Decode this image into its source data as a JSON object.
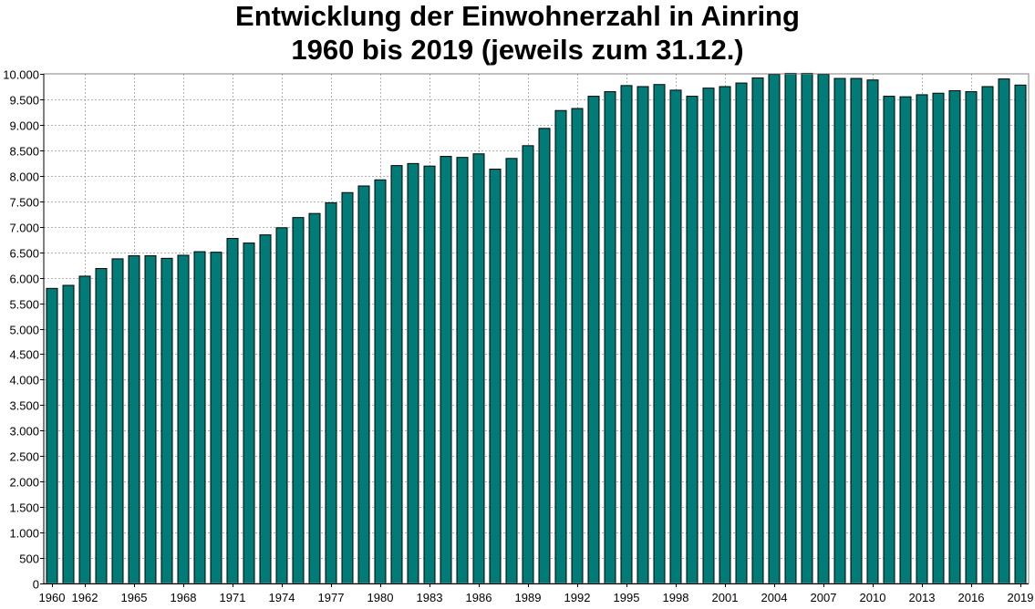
{
  "chart_data": {
    "type": "bar",
    "title": "Entwicklung der Einwohnerzahl in Ainring",
    "subtitle": "1960 bis 2019 (jeweils zum 31.12.)",
    "xlabel": "",
    "ylabel": "",
    "ylim": [
      0,
      10000
    ],
    "yticks": [
      0,
      500,
      1000,
      1500,
      2000,
      2500,
      3000,
      3500,
      4000,
      4500,
      5000,
      5500,
      6000,
      6500,
      7000,
      7500,
      8000,
      8500,
      9000,
      9500,
      10000
    ],
    "ytick_labels": [
      "0",
      "500",
      "1.000",
      "1.500",
      "2.000",
      "2.500",
      "3.000",
      "3.500",
      "4.000",
      "4.500",
      "5.000",
      "5.500",
      "6.000",
      "6.500",
      "7.000",
      "7.500",
      "8.000",
      "8.500",
      "9.000",
      "9.500",
      "10.000"
    ],
    "xtick_labels": [
      "1960",
      "1962",
      "1965",
      "1968",
      "1971",
      "1974",
      "1977",
      "1980",
      "1983",
      "1986",
      "1989",
      "1992",
      "1995",
      "1998",
      "2001",
      "2004",
      "2007",
      "2010",
      "2013",
      "2016",
      "2019"
    ],
    "grid": true,
    "bar_color": "#007b78",
    "categories": [
      "1960",
      "1961",
      "1962",
      "1963",
      "1964",
      "1965",
      "1966",
      "1967",
      "1968",
      "1969",
      "1970",
      "1971",
      "1972",
      "1973",
      "1974",
      "1975",
      "1976",
      "1977",
      "1978",
      "1979",
      "1980",
      "1981",
      "1982",
      "1983",
      "1984",
      "1985",
      "1986",
      "1987",
      "1988",
      "1989",
      "1990",
      "1991",
      "1992",
      "1993",
      "1994",
      "1995",
      "1996",
      "1997",
      "1998",
      "1999",
      "2000",
      "2001",
      "2002",
      "2003",
      "2004",
      "2005",
      "2006",
      "2007",
      "2008",
      "2009",
      "2010",
      "2011",
      "2012",
      "2013",
      "2014",
      "2015",
      "2016",
      "2017",
      "2018",
      "2019"
    ],
    "values": [
      5790,
      5850,
      6030,
      6180,
      6370,
      6430,
      6430,
      6380,
      6440,
      6510,
      6500,
      6770,
      6680,
      6840,
      6980,
      7180,
      7260,
      7470,
      7670,
      7800,
      7920,
      8200,
      8240,
      8190,
      8380,
      8360,
      8430,
      8130,
      8340,
      8590,
      8930,
      9280,
      9320,
      9560,
      9650,
      9770,
      9750,
      9790,
      9680,
      9560,
      9720,
      9750,
      9820,
      9920,
      9990,
      10010,
      10010,
      9990,
      9910,
      9910,
      9880,
      9560,
      9550,
      9590,
      9620,
      9670,
      9650,
      9750,
      9900,
      9780
    ]
  }
}
